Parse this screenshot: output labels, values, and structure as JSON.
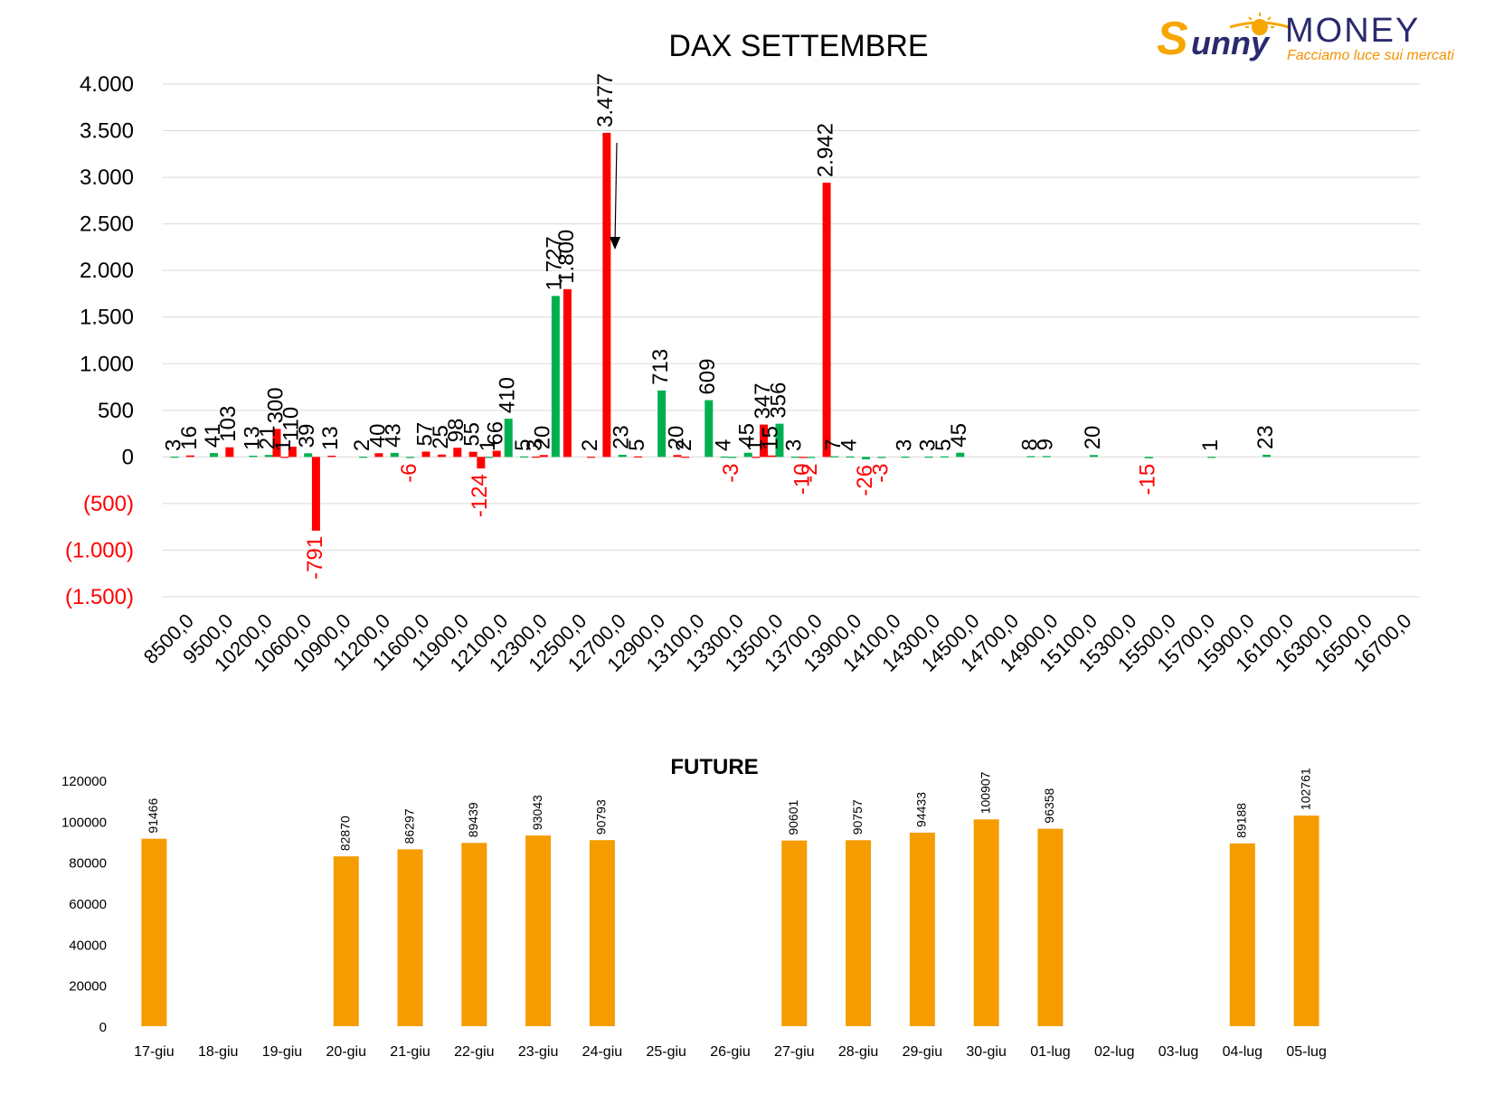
{
  "logo": {
    "brand_script": "unny",
    "brand_initial": "S",
    "brand_word": "MONEY",
    "tagline": "Facciamo luce sui mercati",
    "colors": {
      "sun": "#f7a600",
      "money": "#2a2a6e",
      "tagline": "#f39200"
    }
  },
  "chart_data": [
    {
      "type": "bar",
      "title": "DAX SETTEMBRE",
      "xlabel": "",
      "ylabel": "",
      "ylim": [
        -1500,
        4000
      ],
      "yticks": [
        {
          "value": 4000,
          "label": "4.000"
        },
        {
          "value": 3500,
          "label": "3.500"
        },
        {
          "value": 3000,
          "label": "3.000"
        },
        {
          "value": 2500,
          "label": "2.500"
        },
        {
          "value": 2000,
          "label": "2.000"
        },
        {
          "value": 1500,
          "label": "1.500"
        },
        {
          "value": 1000,
          "label": "1.000"
        },
        {
          "value": 500,
          "label": "500"
        },
        {
          "value": 0,
          "label": "0"
        },
        {
          "value": -500,
          "label": "(500)"
        },
        {
          "value": -1000,
          "label": "(1.000)"
        },
        {
          "value": -1500,
          "label": "(1.500)"
        }
      ],
      "x_tick_labels": [
        "8500,0",
        "9500,0",
        "10200,0",
        "10600,0",
        "10900,0",
        "11200,0",
        "11600,0",
        "11900,0",
        "12100,0",
        "12300,0",
        "12500,0",
        "12700,0",
        "12900,0",
        "13100,0",
        "13300,0",
        "13500,0",
        "13700,0",
        "13900,0",
        "14100,0",
        "14300,0",
        "14500,0",
        "14700,0",
        "14900,0",
        "15100,0",
        "15300,0",
        "15500,0",
        "15700,0",
        "15900,0",
        "16100,0",
        "16300,0",
        "16500,0",
        "16700,0"
      ],
      "grid": true,
      "legend": "none",
      "colors": {
        "call": "#00b050",
        "put": "#ff0000",
        "negative_tick": "#ff0000"
      },
      "series": [
        {
          "values": [
            {
              "x": 0.3,
              "value": 3,
              "label": "3"
            },
            {
              "x": 1.3,
              "value": 41,
              "label": "41"
            },
            {
              "x": 2.3,
              "value": 13,
              "label": "13"
            },
            {
              "x": 2.7,
              "value": 21,
              "label": "21"
            },
            {
              "x": 3.7,
              "value": 39,
              "label": "39"
            },
            {
              "x": 5.1,
              "value": 2,
              "label": "2"
            },
            {
              "x": 5.9,
              "value": 43,
              "label": "43"
            },
            {
              "x": 6.3,
              "value": -6,
              "label": "-6"
            },
            {
              "x": 8.3,
              "value": 1,
              "label": "1"
            },
            {
              "x": 8.8,
              "value": 410,
              "label": "410"
            },
            {
              "x": 9.2,
              "value": 5,
              "label": "5"
            },
            {
              "x": 10.0,
              "value": 1727,
              "label": "1.727"
            },
            {
              "x": 11.7,
              "value": 23,
              "label": "23"
            },
            {
              "x": 12.7,
              "value": 713,
              "label": "713"
            },
            {
              "x": 13.9,
              "value": 609,
              "label": "609"
            },
            {
              "x": 14.3,
              "value": 4,
              "label": "4"
            },
            {
              "x": 14.5,
              "value": -3,
              "label": "-3"
            },
            {
              "x": 14.9,
              "value": 45,
              "label": "45"
            },
            {
              "x": 15.7,
              "value": 356,
              "label": "356"
            },
            {
              "x": 16.1,
              "value": 3,
              "label": "3"
            },
            {
              "x": 16.5,
              "value": -2,
              "label": "-2"
            },
            {
              "x": 17.1,
              "value": 7,
              "label": "7"
            },
            {
              "x": 17.5,
              "value": 4,
              "label": "4"
            },
            {
              "x": 17.9,
              "value": -26,
              "label": "-26"
            },
            {
              "x": 18.3,
              "value": -3,
              "label": "-3"
            },
            {
              "x": 18.9,
              "value": 3,
              "label": "3"
            },
            {
              "x": 19.5,
              "value": 3,
              "label": "3"
            },
            {
              "x": 19.9,
              "value": 5,
              "label": "5"
            },
            {
              "x": 20.3,
              "value": 45,
              "label": "45"
            },
            {
              "x": 22.1,
              "value": 8,
              "label": "8"
            },
            {
              "x": 22.5,
              "value": 9,
              "label": "9"
            },
            {
              "x": 23.7,
              "value": 20,
              "label": "20"
            },
            {
              "x": 25.1,
              "value": -15,
              "label": "-15"
            },
            {
              "x": 26.7,
              "value": 1,
              "label": "1"
            },
            {
              "x": 28.1,
              "value": 23,
              "label": "23"
            }
          ]
        },
        {
          "values": [
            {
              "x": 0.7,
              "value": 16,
              "label": "16"
            },
            {
              "x": 1.7,
              "value": 103,
              "label": "103"
            },
            {
              "x": 2.9,
              "value": 300,
              "label": "300"
            },
            {
              "x": 3.1,
              "value": 1,
              "label": "1"
            },
            {
              "x": 3.3,
              "value": 110,
              "label": "110"
            },
            {
              "x": 3.9,
              "value": -791,
              "label": "-791"
            },
            {
              "x": 4.3,
              "value": 13,
              "label": "13"
            },
            {
              "x": 5.5,
              "value": 40,
              "label": "40"
            },
            {
              "x": 6.7,
              "value": 57,
              "label": "57"
            },
            {
              "x": 7.1,
              "value": 25,
              "label": "25"
            },
            {
              "x": 7.5,
              "value": 98,
              "label": "98"
            },
            {
              "x": 7.9,
              "value": 55,
              "label": "55"
            },
            {
              "x": 8.1,
              "value": -124,
              "label": "-124"
            },
            {
              "x": 8.5,
              "value": 66,
              "label": "66"
            },
            {
              "x": 9.5,
              "value": 3,
              "label": "3"
            },
            {
              "x": 9.7,
              "value": 20,
              "label": "20"
            },
            {
              "x": 10.3,
              "value": 1800,
              "label": "1.800"
            },
            {
              "x": 10.9,
              "value": 2,
              "label": "2"
            },
            {
              "x": 11.3,
              "value": 3477,
              "label": "3.477"
            },
            {
              "x": 12.1,
              "value": 5,
              "label": "5"
            },
            {
              "x": 13.1,
              "value": 20,
              "label": "20"
            },
            {
              "x": 13.3,
              "value": 2,
              "label": "2"
            },
            {
              "x": 15.1,
              "value": 1,
              "label": "1"
            },
            {
              "x": 15.3,
              "value": 347,
              "label": "347"
            },
            {
              "x": 15.5,
              "value": 15,
              "label": "15"
            },
            {
              "x": 16.3,
              "value": -10,
              "label": "-10"
            },
            {
              "x": 16.9,
              "value": 2942,
              "label": "2.942"
            }
          ]
        }
      ]
    },
    {
      "type": "bar",
      "title": "FUTURE",
      "xlabel": "",
      "ylabel": "",
      "ylim": [
        0,
        120000
      ],
      "yticks": [
        {
          "value": 120000,
          "label": "120000"
        },
        {
          "value": 100000,
          "label": "100000"
        },
        {
          "value": 80000,
          "label": "80000"
        },
        {
          "value": 60000,
          "label": "60000"
        },
        {
          "value": 40000,
          "label": "40000"
        },
        {
          "value": 20000,
          "label": "20000"
        },
        {
          "value": 0,
          "label": "0"
        }
      ],
      "grid": false,
      "legend": "none",
      "colors": {
        "bar": "#f59c00"
      },
      "categories": [
        "17-giu",
        "18-giu",
        "19-giu",
        "20-giu",
        "21-giu",
        "22-giu",
        "23-giu",
        "24-giu",
        "25-giu",
        "26-giu",
        "27-giu",
        "28-giu",
        "29-giu",
        "30-giu",
        "01-lug",
        "02-lug",
        "03-lug",
        "04-lug",
        "05-lug"
      ],
      "values": [
        91466,
        null,
        null,
        82870,
        86297,
        89439,
        93043,
        90793,
        null,
        null,
        90601,
        90757,
        94433,
        100907,
        96358,
        null,
        null,
        89188,
        102761
      ],
      "data_labels": [
        "91466",
        "",
        "",
        "82870",
        "86297",
        "89439",
        "93043",
        "90793",
        "",
        "",
        "90601",
        "90757",
        "94433",
        "100907",
        "96358",
        "",
        "",
        "89188",
        "102761"
      ]
    }
  ]
}
